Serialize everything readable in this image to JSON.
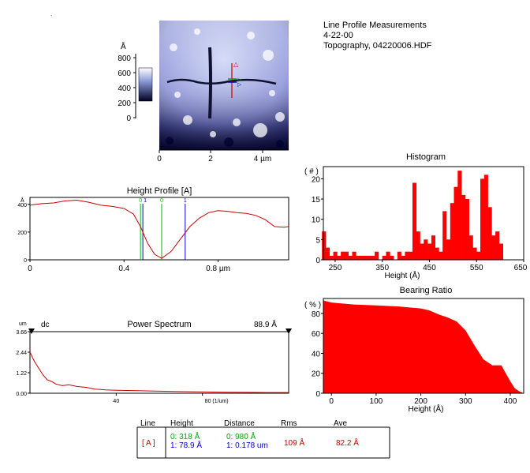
{
  "header": {
    "title": "Line Profile Measurements",
    "date": "4-22-00",
    "file": "Topography,  04220006.HDF"
  },
  "image_panel": {
    "colorbar_unit": "Å",
    "colorbar_ticks": [
      "800",
      "600",
      "400",
      "200",
      "0"
    ],
    "x_ticks": [
      "0",
      "2",
      "4 µm"
    ],
    "markers": {
      "red": "△",
      "green": "▷",
      "blue": "▷"
    }
  },
  "height_profile": {
    "title": "Height Profile [A]",
    "y_unit": "Å",
    "y_ticks": [
      "400",
      "200",
      "0"
    ],
    "x_ticks": [
      "0",
      "0.4",
      "0.8 µm"
    ],
    "cursor_labels": [
      "0",
      "1",
      "0",
      "1"
    ]
  },
  "power_spectrum": {
    "y_unit": "um",
    "dc_label": "dc",
    "title": "Power Spectrum",
    "value_label": "88.9 Å",
    "y_ticks": [
      "3.66",
      "2.44",
      "1.22",
      "0.00"
    ],
    "x_ticks": [
      "40",
      "80 (1/um)"
    ]
  },
  "histogram": {
    "title": "Histogram",
    "y_unit": "( # )",
    "y_ticks": [
      "20",
      "15",
      "10",
      "5",
      "0"
    ],
    "x_ticks": [
      "250",
      "350",
      "450",
      "550",
      "650"
    ],
    "xlabel": "Height (Å)"
  },
  "bearing_ratio": {
    "title": "Bearing Ratio",
    "y_unit": "( % )",
    "y_ticks": [
      "80",
      "60",
      "40",
      "20",
      "0"
    ],
    "x_ticks": [
      "0",
      "100",
      "200",
      "300",
      "400"
    ],
    "xlabel": "Height (Å)"
  },
  "table": {
    "headers": [
      "Line",
      "Height",
      "Distance",
      "Rms",
      "Ave"
    ],
    "line_label": "[ A ]",
    "row0_height": "0:   318 Å",
    "row1_height": "1:  78.9 Å",
    "row0_distance": "0:   980 Å",
    "row1_distance": "1:  0.178 um",
    "rms": "109 Å",
    "ave": "82.2 Å"
  },
  "colors": {
    "trace": "#cc0000",
    "fill": "#ff0000",
    "cursor0": "#00bb00",
    "cursor1": "#0000cc"
  },
  "chart_data": [
    {
      "type": "line",
      "title": "Height Profile [A]",
      "xlabel": "",
      "ylabel": "Å",
      "xlim": [
        0,
        1.1
      ],
      "ylim": [
        0,
        450
      ],
      "x": [
        0,
        0.05,
        0.1,
        0.15,
        0.2,
        0.25,
        0.3,
        0.35,
        0.4,
        0.44,
        0.47,
        0.5,
        0.53,
        0.56,
        0.6,
        0.64,
        0.68,
        0.72,
        0.76,
        0.8,
        0.84,
        0.88,
        0.92,
        0.96,
        1.0,
        1.04,
        1.08,
        1.1
      ],
      "y": [
        395,
        405,
        410,
        425,
        430,
        415,
        395,
        385,
        370,
        330,
        240,
        120,
        40,
        10,
        60,
        150,
        240,
        300,
        340,
        355,
        350,
        340,
        335,
        320,
        290,
        240,
        235,
        240
      ]
    },
    {
      "type": "line",
      "title": "Power Spectrum",
      "xlabel": "(1/um)",
      "ylabel": "um",
      "xlim": [
        0,
        120
      ],
      "ylim": [
        0,
        3.66
      ],
      "x": [
        0,
        2,
        4,
        6,
        8,
        10,
        12,
        15,
        18,
        22,
        26,
        30,
        35,
        40,
        50,
        60,
        70,
        80,
        90,
        100,
        110,
        120
      ],
      "y": [
        2.44,
        1.9,
        1.5,
        1.1,
        0.8,
        0.7,
        0.55,
        0.45,
        0.5,
        0.4,
        0.35,
        0.25,
        0.2,
        0.18,
        0.15,
        0.12,
        0.1,
        0.08,
        0.06,
        0.05,
        0.04,
        0.04
      ]
    },
    {
      "type": "bar",
      "title": "Histogram",
      "xlabel": "Height (Å)",
      "ylabel": "( # )",
      "xlim": [
        225,
        650
      ],
      "ylim": [
        0,
        23
      ],
      "x": [
        226,
        234,
        242,
        250,
        258,
        266,
        274,
        282,
        290,
        298,
        306,
        314,
        322,
        330,
        338,
        346,
        354,
        362,
        370,
        378,
        386,
        394,
        402,
        410,
        418,
        426,
        434,
        442,
        450,
        458,
        466,
        474,
        482,
        490,
        498,
        506,
        514,
        522,
        530,
        538,
        546,
        554,
        562,
        570,
        578,
        586,
        594,
        602,
        610
      ],
      "values": [
        7,
        3,
        1,
        2,
        1,
        2,
        2,
        1,
        2,
        1,
        1,
        1,
        1,
        1,
        2,
        0,
        1,
        2,
        1,
        0,
        2,
        1,
        2,
        2,
        19,
        7,
        4,
        5,
        4,
        6,
        3,
        2,
        12,
        5,
        14,
        18,
        22,
        16,
        15,
        6,
        3,
        2,
        20,
        21,
        13,
        6,
        7,
        4,
        0
      ]
    },
    {
      "type": "area",
      "title": "Bearing Ratio",
      "xlabel": "Height (Å)",
      "ylabel": "( % )",
      "xlim": [
        -18,
        430
      ],
      "ylim": [
        0,
        95
      ],
      "x": [
        -18,
        0,
        50,
        100,
        150,
        200,
        220,
        240,
        260,
        280,
        300,
        320,
        340,
        360,
        380,
        390,
        400,
        410,
        420,
        430
      ],
      "y": [
        93,
        91,
        89,
        88,
        87,
        85,
        83,
        79,
        76,
        72,
        63,
        48,
        34,
        28,
        28,
        20,
        12,
        5,
        2,
        0
      ]
    }
  ]
}
